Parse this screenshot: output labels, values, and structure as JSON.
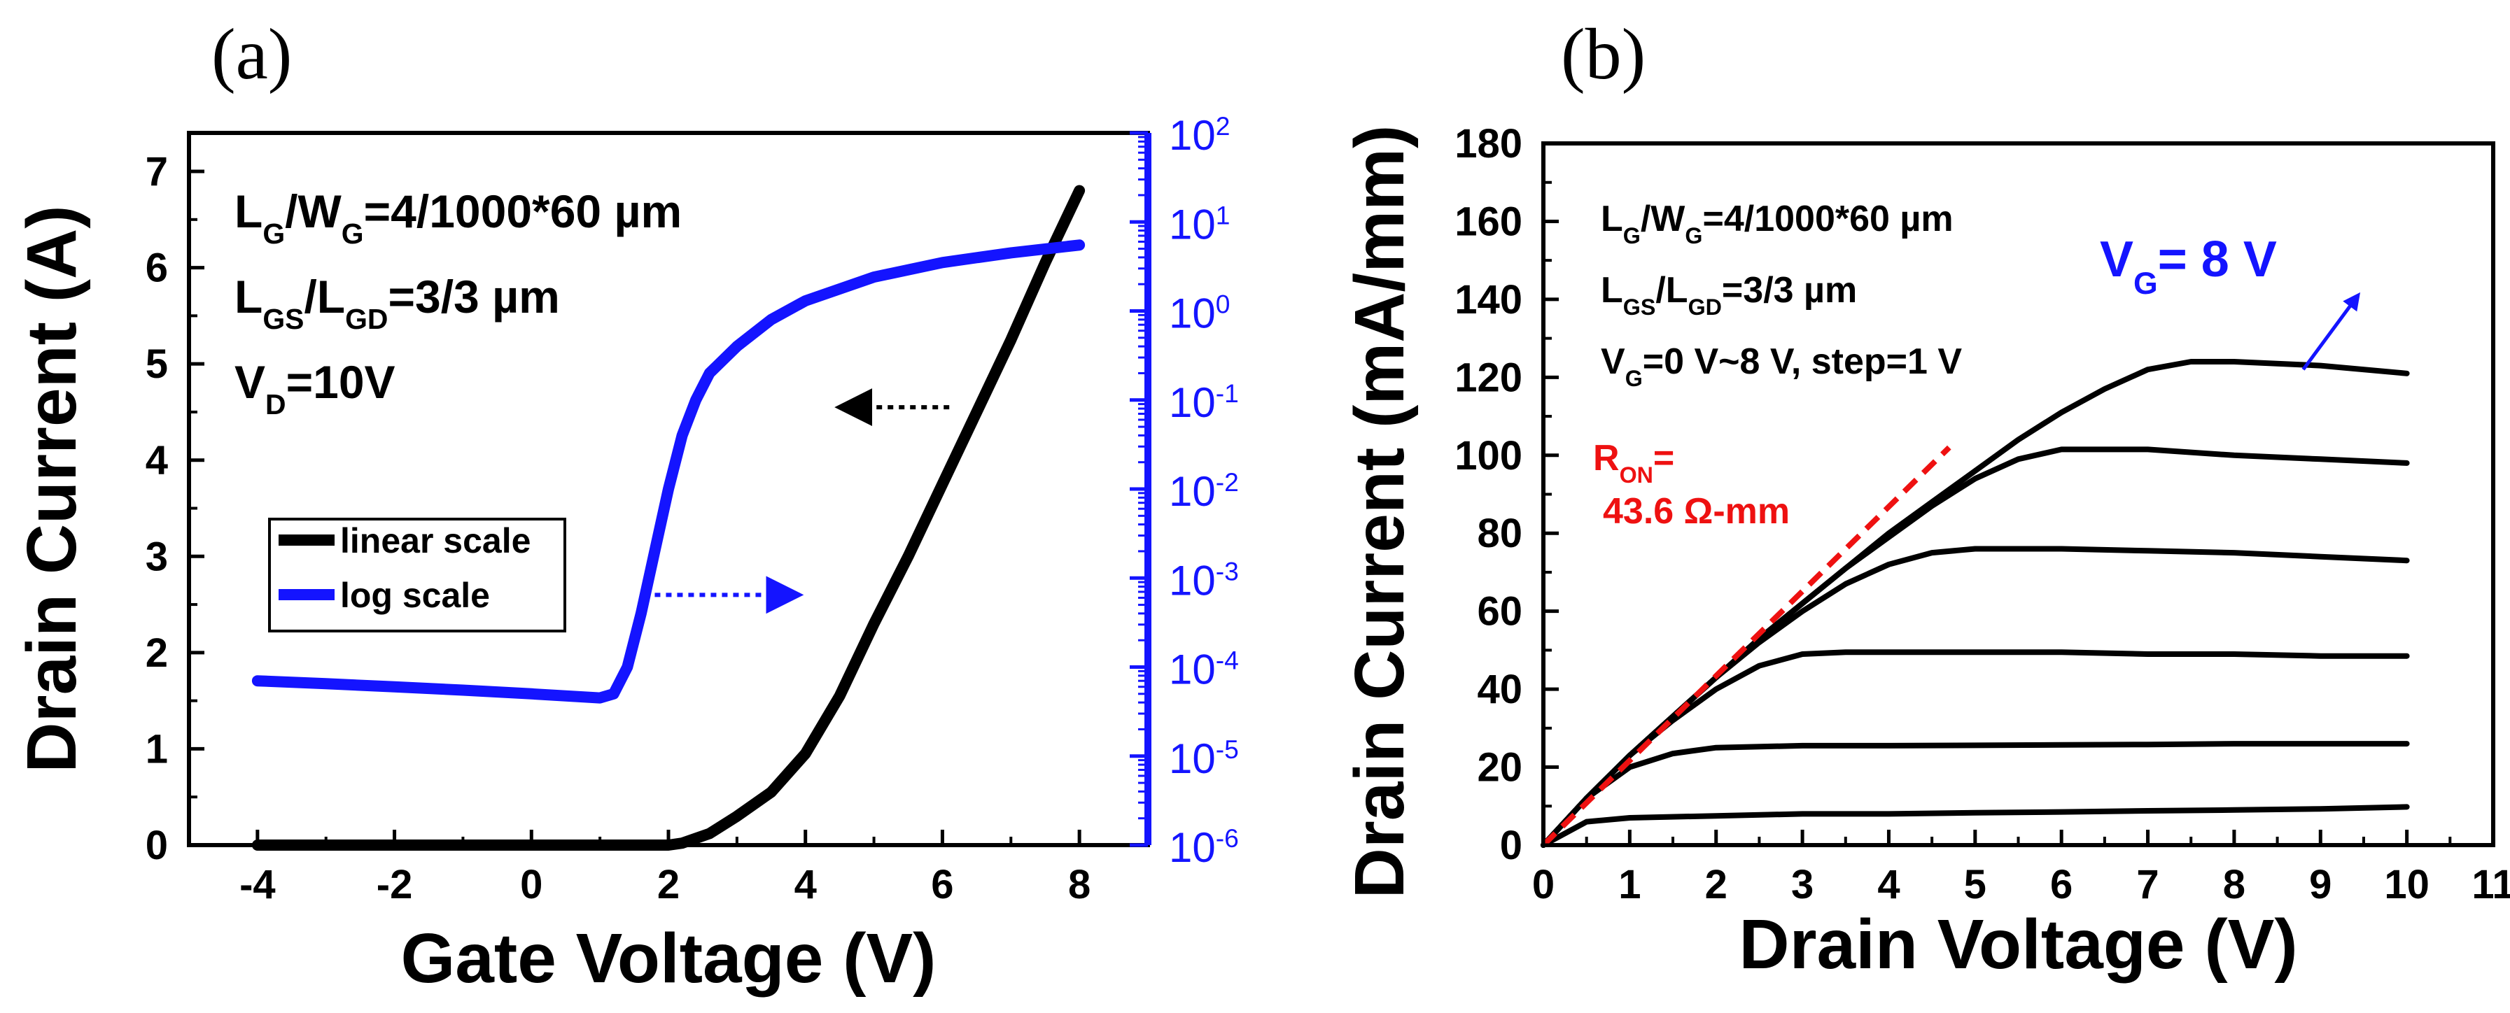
{
  "chart_data": [
    {
      "panel_label": "(a)",
      "type": "line",
      "xlabel": "Gate Voltage (V)",
      "ylabel": "Drain Current (A)",
      "xlim": [
        -5,
        9
      ],
      "xticks": [
        "-4",
        "-2",
        "0",
        "2",
        "4",
        "6",
        "8"
      ],
      "ylim": [
        0,
        7.4
      ],
      "yticks": [
        "0",
        "1",
        "2",
        "3",
        "4",
        "5",
        "6",
        "7"
      ],
      "y2_scale": "log",
      "y2lim": [
        1e-06,
        100
      ],
      "y2ticks": [
        {
          "base": "10",
          "exp": "-6"
        },
        {
          "base": "10",
          "exp": "-5"
        },
        {
          "base": "10",
          "exp": "-4"
        },
        {
          "base": "10",
          "exp": "-3"
        },
        {
          "base": "10",
          "exp": "-2"
        },
        {
          "base": "10",
          "exp": "-1"
        },
        {
          "base": "10",
          "exp": "0"
        },
        {
          "base": "10",
          "exp": "1"
        },
        {
          "base": "10",
          "exp": "2"
        }
      ],
      "y2_color": "#1414ff",
      "annotations": [
        {
          "parts": [
            {
              "t": "L"
            },
            {
              "s": "G"
            },
            {
              "t": "/W"
            },
            {
              "s": "G"
            },
            {
              "t": "=4/1000*60 µm"
            }
          ]
        },
        {
          "parts": [
            {
              "t": "L"
            },
            {
              "s": "GS"
            },
            {
              "t": "/L"
            },
            {
              "s": "GD"
            },
            {
              "t": "=3/3 µm"
            }
          ]
        },
        {
          "parts": [
            {
              "t": "V"
            },
            {
              "s": "D"
            },
            {
              "t": "=10V"
            }
          ]
        }
      ],
      "legend": {
        "placement": "center-left",
        "entries": [
          {
            "label": "linear scale",
            "color": "#000000"
          },
          {
            "label": "log scale",
            "color": "#1414ff"
          }
        ]
      },
      "series": [
        {
          "axis": "left",
          "color": "#000000",
          "x": [
            -4,
            -2,
            0,
            1,
            2,
            2.2,
            2.6,
            3,
            3.5,
            4,
            4.5,
            5,
            5.5,
            6,
            6.5,
            7,
            7.5,
            8
          ],
          "y": [
            0,
            0,
            0,
            0,
            0,
            0.02,
            0.12,
            0.3,
            0.55,
            0.95,
            1.55,
            2.3,
            3.0,
            3.75,
            4.5,
            5.25,
            6.05,
            6.8
          ]
        },
        {
          "axis": "right",
          "color": "#1414ff",
          "x": [
            -4,
            -3,
            -2,
            -1,
            0,
            1,
            1.2,
            1.4,
            1.6,
            1.8,
            2.0,
            2.2,
            2.4,
            2.6,
            3.0,
            3.5,
            4.0,
            5.0,
            6.0,
            7.0,
            8.0
          ],
          "y": [
            7e-05,
            6.5e-05,
            6e-05,
            5.5e-05,
            5e-05,
            4.5e-05,
            5e-05,
            0.0001,
            0.0004,
            0.002,
            0.01,
            0.04,
            0.1,
            0.2,
            0.4,
            0.8,
            1.3,
            2.4,
            3.5,
            4.5,
            5.5
          ]
        }
      ],
      "arrows": [
        {
          "from": [
            6.1,
            4.55
          ],
          "to": [
            4.7,
            4.55
          ],
          "axis": "left",
          "direction": "left",
          "color": "#000000"
        },
        {
          "from": [
            1.8,
            2.6
          ],
          "to": [
            3.7,
            2.6
          ],
          "axis": "left",
          "direction": "right",
          "color": "#1414ff"
        }
      ]
    },
    {
      "panel_label": "(b)",
      "type": "line",
      "xlabel": "Drain Voltage (V)",
      "ylabel": "Drain Current (mA/mm)",
      "xlim": [
        0,
        11
      ],
      "xticks": [
        "0",
        "1",
        "2",
        "3",
        "4",
        "5",
        "6",
        "7",
        "8",
        "9",
        "10",
        "11"
      ],
      "ylim": [
        0,
        180
      ],
      "yticks": [
        "0",
        "20",
        "40",
        "60",
        "80",
        "100",
        "120",
        "140",
        "160",
        "180"
      ],
      "annotations": [
        {
          "parts": [
            {
              "t": "L"
            },
            {
              "s": "G"
            },
            {
              "t": "/W"
            },
            {
              "s": "G"
            },
            {
              "t": "=4/1000*60 µm"
            }
          ]
        },
        {
          "parts": [
            {
              "t": "L"
            },
            {
              "s": "GS"
            },
            {
              "t": "/L"
            },
            {
              "s": "GD"
            },
            {
              "t": "=3/3 µm"
            }
          ]
        },
        {
          "parts": [
            {
              "t": "V"
            },
            {
              "s": "G"
            },
            {
              "t": "=0 V~8 V, step=1 V"
            }
          ]
        }
      ],
      "vg_label": {
        "parts": [
          {
            "t": "V"
          },
          {
            "s": "G"
          },
          {
            "t": "= 8 V"
          }
        ]
      },
      "ron_label": {
        "line1": {
          "parts": [
            {
              "t": "R"
            },
            {
              "s": "ON"
            },
            {
              "t": "="
            }
          ]
        },
        "line2": "43.6 Ω-mm"
      },
      "series": [
        {
          "name": "",
          "color": "#000000",
          "x": [
            0,
            0.5,
            1,
            2,
            3,
            4,
            5,
            6,
            7,
            8,
            9,
            10
          ],
          "y": [
            0,
            6,
            7,
            7.5,
            8,
            8,
            8.3,
            8.5,
            8.8,
            9,
            9.3,
            9.8
          ]
        },
        {
          "name": "",
          "color": "#000000",
          "x": [
            0,
            0.5,
            1,
            1.5,
            2,
            3,
            4,
            5,
            6,
            7,
            8,
            9,
            10
          ],
          "y": [
            0,
            12,
            20,
            23.5,
            25,
            25.5,
            25.5,
            25.6,
            25.7,
            25.8,
            26,
            26,
            26
          ]
        },
        {
          "name": "",
          "color": "#000000",
          "x": [
            0,
            0.5,
            1,
            1.5,
            2,
            2.5,
            3,
            3.5,
            4,
            5,
            6,
            7,
            8,
            9,
            10
          ],
          "y": [
            0,
            12,
            23,
            32,
            40,
            46,
            49,
            49.5,
            49.5,
            49.5,
            49.5,
            49,
            49,
            48.5,
            48.5
          ]
        },
        {
          "name": "",
          "color": "#000000",
          "x": [
            0,
            0.5,
            1,
            1.5,
            2,
            2.5,
            3,
            3.5,
            4,
            4.5,
            5,
            6,
            7,
            8,
            9,
            10
          ],
          "y": [
            0,
            12,
            23,
            33,
            43,
            52,
            60,
            67,
            72,
            75,
            76,
            76,
            75.5,
            75,
            74,
            73
          ]
        },
        {
          "name": "",
          "color": "#000000",
          "x": [
            0,
            0.5,
            1,
            1.5,
            2,
            2.5,
            3,
            3.5,
            4,
            4.5,
            5,
            5.5,
            6,
            7,
            8,
            9,
            10
          ],
          "y": [
            0,
            12,
            23,
            33,
            43,
            53,
            62,
            71,
            79,
            87,
            94,
            99,
            101.5,
            101.5,
            100,
            99,
            98
          ]
        },
        {
          "name": "",
          "color": "#000000",
          "x": [
            0,
            0.5,
            1,
            1.5,
            2,
            2.5,
            3,
            3.5,
            4,
            4.5,
            5,
            5.5,
            6,
            6.5,
            7,
            7.5,
            8,
            9,
            10
          ],
          "y": [
            0,
            12,
            23,
            33,
            43,
            53,
            62,
            71,
            80,
            88,
            96,
            104,
            111,
            117,
            122,
            124,
            124,
            123,
            121
          ]
        }
      ],
      "fit_line": {
        "color": "#ee1111",
        "x": [
          0,
          4.7
        ],
        "y": [
          0,
          102
        ]
      },
      "vg_arrow": {
        "from": [
          8.8,
          122
        ],
        "to": [
          9.4,
          140
        ],
        "color": "#1414ff"
      }
    }
  ]
}
